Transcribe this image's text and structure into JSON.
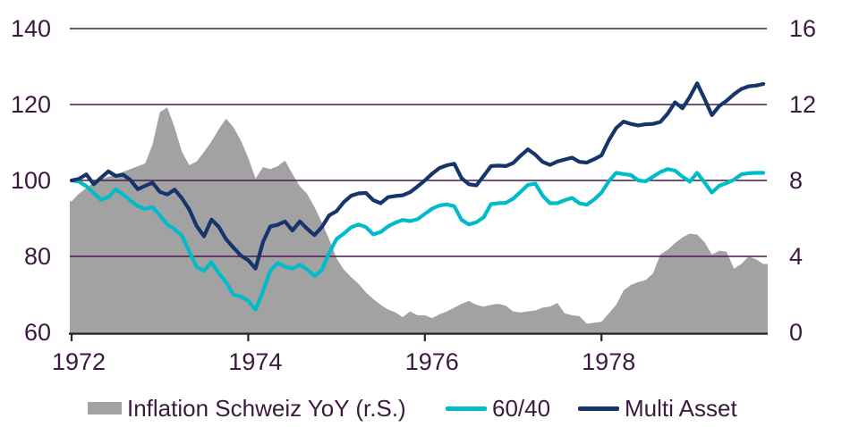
{
  "chart_data": {
    "type": "line",
    "description": "Indexed performance of Multi Asset and 60/40 portfolios (left scale) vs Swiss inflation YoY in percent (right scale, shaded area), monthly from 1972 to end of 1979",
    "x_axis": {
      "start_year": 1972,
      "points_per_year": 12,
      "tick_labels": [
        "1972",
        "1974",
        "1976",
        "1978"
      ],
      "tick_years": [
        1972,
        1974,
        1976,
        1978
      ],
      "range_years": [
        1972,
        1979.85
      ]
    },
    "left_axis": {
      "range": [
        60,
        140
      ],
      "ticks": [
        140,
        120,
        100,
        80,
        60
      ],
      "tick_labels": [
        "140",
        "120",
        "100",
        "80",
        "60"
      ]
    },
    "right_axis": {
      "range": [
        0,
        16
      ],
      "ticks": [
        16,
        12,
        8,
        4,
        0
      ],
      "tick_labels": [
        "16",
        "12",
        "8",
        "4",
        "0"
      ],
      "grid": "on"
    },
    "series": [
      {
        "name": "Inflation Schweiz YoY (r.S.)",
        "type": "area",
        "axis": "right",
        "color": "#A2A2A2",
        "values": [
          6.9,
          7.3,
          7.6,
          7.9,
          8.05,
          8.2,
          8.3,
          8.45,
          8.6,
          8.75,
          8.9,
          9.9,
          11.6,
          11.85,
          10.8,
          9.5,
          8.8,
          9.0,
          9.5,
          10.05,
          10.7,
          11.25,
          10.8,
          10.1,
          9.2,
          8.1,
          8.7,
          8.6,
          8.75,
          9.05,
          8.35,
          7.7,
          7.3,
          6.6,
          5.8,
          4.9,
          3.9,
          3.3,
          2.9,
          2.55,
          2.1,
          1.75,
          1.45,
          1.2,
          1.05,
          0.8,
          1.1,
          0.9,
          0.9,
          0.75,
          0.95,
          1.1,
          1.3,
          1.5,
          1.65,
          1.45,
          1.35,
          1.45,
          1.5,
          1.4,
          1.1,
          1.05,
          1.1,
          1.15,
          1.3,
          1.35,
          1.55,
          1.0,
          0.9,
          0.85,
          0.45,
          0.5,
          0.55,
          1.0,
          1.45,
          2.2,
          2.5,
          2.65,
          2.75,
          3.1,
          4.1,
          4.35,
          4.7,
          5.0,
          5.2,
          5.15,
          4.75,
          4.1,
          4.3,
          4.25,
          3.35,
          3.6,
          4.0,
          3.85,
          3.6
        ]
      },
      {
        "name": "60/40",
        "type": "line",
        "axis": "left",
        "color": "#00BCC9",
        "values": [
          100.0,
          99.7,
          98.5,
          96.7,
          94.9,
          95.6,
          97.7,
          96.3,
          94.7,
          93.2,
          92.5,
          93.0,
          90.8,
          88.4,
          87.2,
          85.4,
          81.2,
          77.2,
          76.2,
          78.5,
          75.6,
          73.2,
          69.9,
          69.4,
          68.3,
          66.0,
          70.8,
          76.2,
          78.2,
          77.3,
          76.8,
          77.8,
          76.6,
          74.8,
          76.4,
          80.9,
          84.6,
          86.0,
          87.7,
          88.4,
          87.7,
          85.8,
          86.4,
          87.9,
          88.9,
          89.6,
          89.3,
          89.8,
          91.2,
          92.6,
          93.4,
          93.7,
          93.2,
          89.6,
          88.4,
          89.0,
          90.3,
          93.8,
          94.0,
          94.1,
          95.2,
          97.0,
          98.8,
          99.2,
          96.0,
          94.0,
          94.0,
          94.8,
          95.4,
          94.0,
          93.6,
          95.0,
          96.8,
          99.8,
          102.0,
          101.7,
          101.4,
          100.0,
          99.8,
          101.0,
          102.2,
          103.0,
          102.6,
          101.0,
          99.7,
          102.0,
          99.5,
          96.8,
          98.6,
          99.3,
          100.2,
          101.6,
          101.9,
          102.0,
          102.0
        ]
      },
      {
        "name": "Multi Asset",
        "type": "line",
        "axis": "left",
        "color": "#15356B",
        "values": [
          100.0,
          100.4,
          101.6,
          99.0,
          100.7,
          102.4,
          101.2,
          101.5,
          100.1,
          97.7,
          98.6,
          99.4,
          97.0,
          96.3,
          97.6,
          95.3,
          92.3,
          88.0,
          85.3,
          89.7,
          87.8,
          84.5,
          82.3,
          80.2,
          79.0,
          76.8,
          83.8,
          87.9,
          88.3,
          89.2,
          86.8,
          89.2,
          87.3,
          85.6,
          87.7,
          90.8,
          91.9,
          94.3,
          96.0,
          96.6,
          96.7,
          94.8,
          94.0,
          95.6,
          95.9,
          96.1,
          96.9,
          98.4,
          100.0,
          101.8,
          103.3,
          104.0,
          104.4,
          100.6,
          99.0,
          98.7,
          101.2,
          103.8,
          103.9,
          103.8,
          104.6,
          106.5,
          108.2,
          106.8,
          104.9,
          104.1,
          105.0,
          105.5,
          106.0,
          104.9,
          104.7,
          105.6,
          106.6,
          110.6,
          113.8,
          115.5,
          114.9,
          114.5,
          114.8,
          114.9,
          115.4,
          117.6,
          120.6,
          119.0,
          122.0,
          125.6,
          121.5,
          117.2,
          119.6,
          121.0,
          122.7,
          124.1,
          124.8,
          125.0,
          125.4
        ]
      }
    ]
  },
  "legend": {
    "items": [
      {
        "label": "Inflation Schweiz YoY (r.S.)",
        "swatch": "area",
        "color": "#A2A2A2"
      },
      {
        "label": "60/40",
        "swatch": "line",
        "color": "#00BCC9"
      },
      {
        "label": "Multi Asset",
        "swatch": "line",
        "color": "#15356B"
      }
    ]
  },
  "colors": {
    "grid_line": "#4A1A4A",
    "axis_line": "#262626",
    "tick_text": "#3C1A40"
  }
}
